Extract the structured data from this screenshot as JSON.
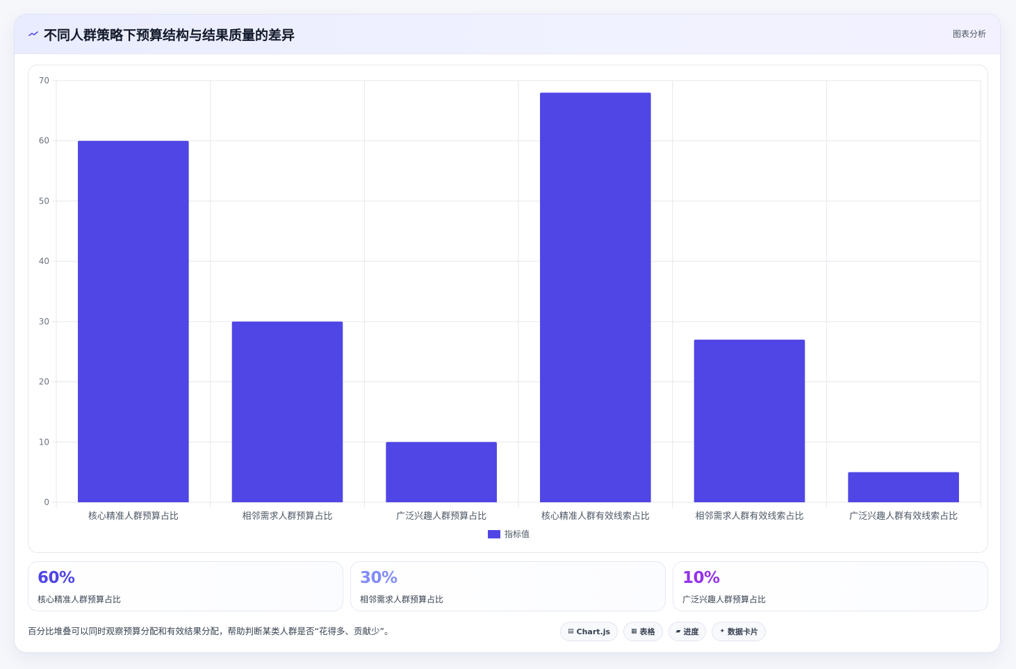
{
  "header": {
    "title": "不同人群策略下预算结构与结果质量的差异",
    "title_icon": "trend-line-icon",
    "tag": "图表分析"
  },
  "chart_data": {
    "type": "bar",
    "categories": [
      "核心精准人群预算占比",
      "相邻需求人群预算占比",
      "广泛兴趣人群预算占比",
      "核心精准人群有效线索占比",
      "相邻需求人群有效线索占比",
      "广泛兴趣人群有效线索占比"
    ],
    "series": [
      {
        "name": "指标值",
        "values": [
          60,
          30,
          10,
          68,
          27,
          5
        ],
        "color": "#5046e5"
      }
    ],
    "ylim": [
      0,
      70
    ],
    "yticks": [
      0,
      10,
      20,
      30,
      40,
      50,
      60,
      70
    ],
    "grid": true,
    "legend": "bottom"
  },
  "stats": [
    {
      "value": "60%",
      "label": "核心精准人群预算占比",
      "color": "#4f46e5"
    },
    {
      "value": "30%",
      "label": "相邻需求人群预算占比",
      "color": "#818cf8"
    },
    {
      "value": "10%",
      "label": "广泛兴趣人群预算占比",
      "color": "#9333ea"
    }
  ],
  "footnote": "百分比堆叠可以同时观察预算分配和有效结果分配，帮助判断某类人群是否“花得多、贡献少”。",
  "pills": [
    {
      "icon": "▤",
      "icon_name": "chart-icon",
      "label": "Chart.js"
    },
    {
      "icon": "▦",
      "icon_name": "table-icon",
      "label": "表格"
    },
    {
      "icon": "▰",
      "icon_name": "progress-icon",
      "label": "进度"
    },
    {
      "icon": "✦",
      "icon_name": "sparkle-icon",
      "label": "数据卡片"
    }
  ]
}
